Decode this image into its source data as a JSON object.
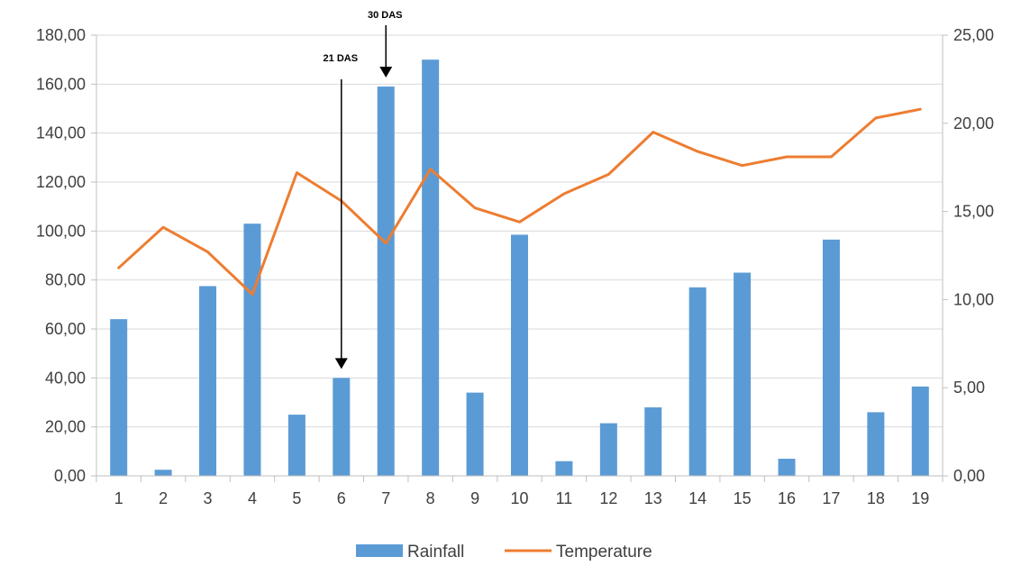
{
  "chart_data": {
    "type": "bar",
    "categories": [
      "1",
      "2",
      "3",
      "4",
      "5",
      "6",
      "7",
      "8",
      "9",
      "10",
      "11",
      "12",
      "13",
      "14",
      "15",
      "16",
      "17",
      "18",
      "19"
    ],
    "series": [
      {
        "name": "Rainfall",
        "type": "bar",
        "axis": "left",
        "color": "#5B9BD5",
        "values": [
          64,
          2.5,
          77.5,
          103,
          25,
          40,
          159,
          170,
          34,
          98.5,
          6,
          21.5,
          28,
          77,
          83,
          7,
          96.5,
          26,
          36.5
        ]
      },
      {
        "name": "Temperature",
        "type": "line",
        "axis": "right",
        "color": "#ED7D31",
        "values": [
          11.8,
          14.1,
          12.7,
          10.3,
          17.2,
          15.6,
          13.2,
          17.4,
          15.2,
          14.4,
          16.0,
          17.1,
          19.5,
          18.4,
          17.6,
          18.1,
          18.1,
          20.3,
          20.8
        ]
      }
    ],
    "y_left": {
      "min": 0,
      "max": 180,
      "step": 20,
      "tick_labels": [
        "0,00",
        "20,00",
        "40,00",
        "60,00",
        "80,00",
        "100,00",
        "120,00",
        "140,00",
        "160,00",
        "180,00"
      ]
    },
    "y_right": {
      "min": 0,
      "max": 25,
      "step": 5,
      "tick_labels": [
        "0,00",
        "5,00",
        "10,00",
        "15,00",
        "20,00",
        "25,00"
      ]
    },
    "grid": true,
    "legend_position": "bottom",
    "annotations": [
      {
        "label": "21 DAS",
        "category": "6"
      },
      {
        "label": "30 DAS",
        "category": "7"
      }
    ]
  }
}
